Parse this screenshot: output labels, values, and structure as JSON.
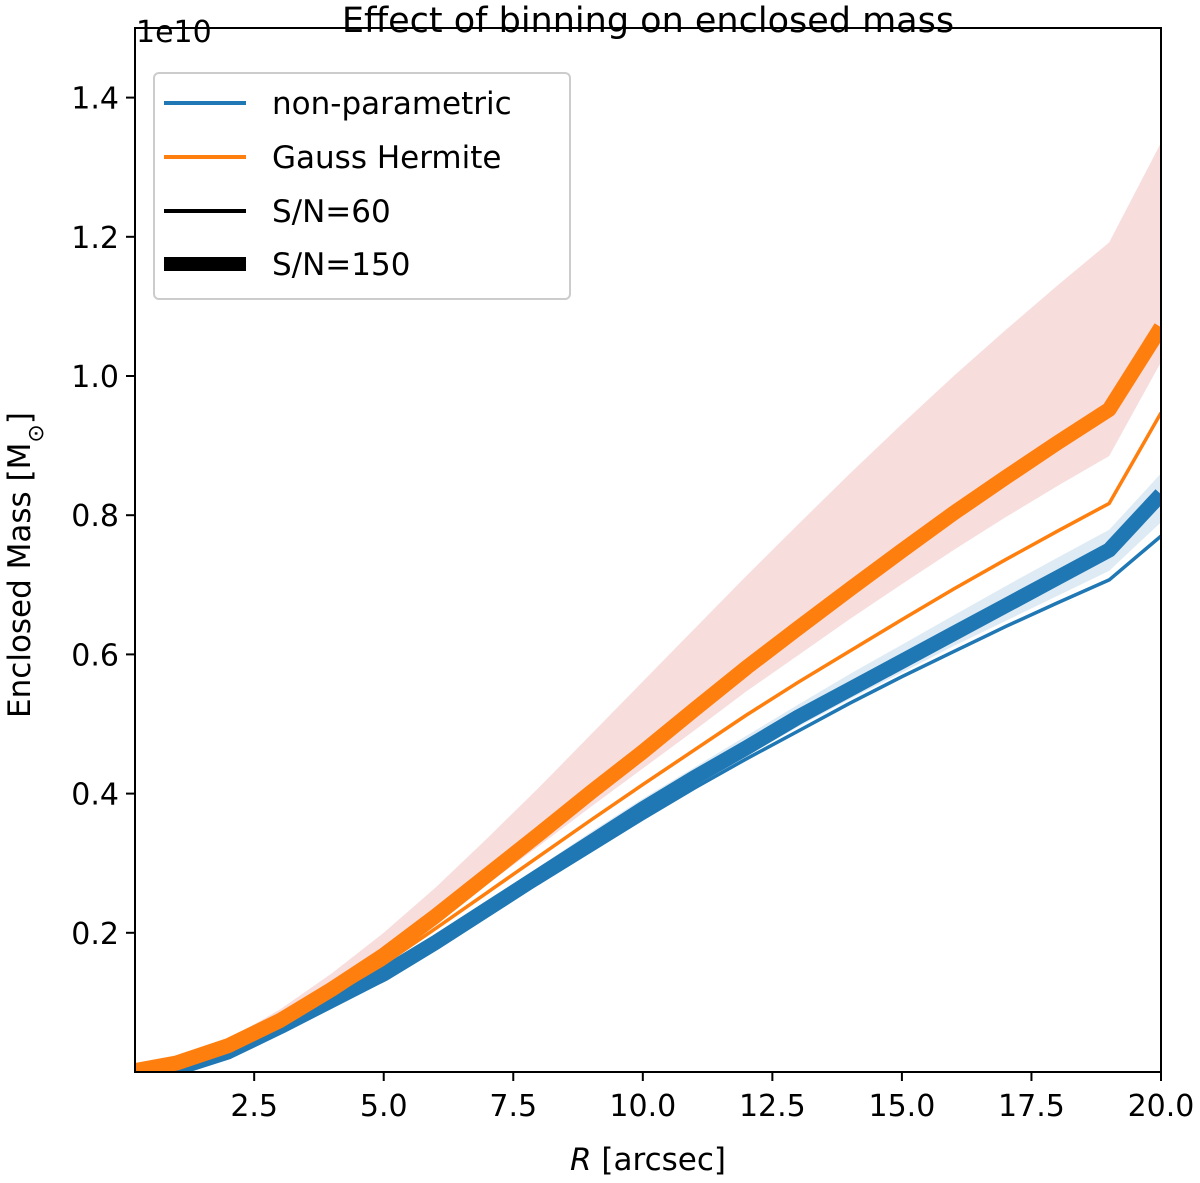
{
  "chart_data": {
    "type": "line",
    "title": "Effect of binning on enclosed mass",
    "xlabel_italic": "R",
    "xlabel_rest": " [arcsec]",
    "ylabel_main": "Enclosed Mass [M",
    "ylabel_sub": "⊙",
    "ylabel_close": "]",
    "y_offset_text": "1e10",
    "xlim": [
      0.2,
      20.0
    ],
    "ylim": [
      0.0,
      1.5
    ],
    "xticks": [
      2.5,
      5.0,
      7.5,
      10.0,
      12.5,
      15.0,
      17.5,
      20.0
    ],
    "xtick_labels": [
      "2.5",
      "5.0",
      "7.5",
      "10.0",
      "12.5",
      "15.0",
      "17.5",
      "20.0"
    ],
    "yticks": [
      0.2,
      0.4,
      0.6,
      0.8,
      1.0,
      1.2,
      1.4
    ],
    "ytick_labels": [
      "0.2",
      "0.4",
      "0.6",
      "0.8",
      "1.0",
      "1.2",
      "1.4"
    ],
    "grid": false,
    "legend_position": "upper-left",
    "legend": [
      {
        "label": "non-parametric",
        "color": "#1f77b4",
        "style": "thin"
      },
      {
        "label": "Gauss Hermite",
        "color": "#ff7f0e",
        "style": "thin"
      },
      {
        "label": "S/N=60",
        "color": "#000000",
        "style": "thin"
      },
      {
        "label": "S/N=150",
        "color": "#000000",
        "style": "thick"
      }
    ],
    "x": [
      0.2,
      1.0,
      2.0,
      3.0,
      4.0,
      5.0,
      6.0,
      7.0,
      8.0,
      9.0,
      10.0,
      11.0,
      12.0,
      13.0,
      14.0,
      15.0,
      16.0,
      17.0,
      18.0,
      19.0,
      20.0
    ],
    "series": [
      {
        "name": "non-parametric",
        "sn": "60",
        "color": "#1f77b4",
        "values": [
          0.0,
          0.005,
          0.028,
          0.063,
          0.1,
          0.138,
          0.182,
          0.228,
          0.272,
          0.318,
          0.364,
          0.408,
          0.45,
          0.49,
          0.53,
          0.568,
          0.604,
          0.64,
          0.674,
          0.707,
          0.77
        ]
      },
      {
        "name": "non-parametric",
        "sn": "150",
        "color": "#1f77b4",
        "values": [
          0.0,
          0.005,
          0.029,
          0.065,
          0.103,
          0.141,
          0.186,
          0.234,
          0.282,
          0.33,
          0.378,
          0.423,
          0.466,
          0.51,
          0.55,
          0.59,
          0.63,
          0.67,
          0.71,
          0.75,
          0.83
        ]
      },
      {
        "name": "Gauss Hermite",
        "sn": "60",
        "color": "#ff7f0e",
        "values": [
          0.002,
          0.013,
          0.037,
          0.07,
          0.111,
          0.155,
          0.206,
          0.258,
          0.31,
          0.362,
          0.413,
          0.463,
          0.513,
          0.56,
          0.605,
          0.65,
          0.694,
          0.736,
          0.777,
          0.817,
          0.947
        ]
      },
      {
        "name": "Gauss Hermite",
        "sn": "150",
        "color": "#ff7f0e",
        "values": [
          0.002,
          0.013,
          0.038,
          0.074,
          0.119,
          0.168,
          0.224,
          0.283,
          0.342,
          0.402,
          0.46,
          0.521,
          0.581,
          0.638,
          0.694,
          0.749,
          0.803,
          0.854,
          0.904,
          0.952,
          1.07
        ]
      }
    ],
    "bands": [
      {
        "color": "#1f77b4",
        "opacity": 0.15,
        "lower": [
          0.0,
          0.005,
          0.029,
          0.063,
          0.101,
          0.138,
          0.183,
          0.229,
          0.276,
          0.323,
          0.369,
          0.412,
          0.454,
          0.496,
          0.536,
          0.574,
          0.612,
          0.648,
          0.684,
          0.72,
          0.79
        ],
        "upper": [
          0.0,
          0.006,
          0.031,
          0.068,
          0.107,
          0.148,
          0.195,
          0.245,
          0.295,
          0.345,
          0.393,
          0.438,
          0.483,
          0.528,
          0.572,
          0.614,
          0.656,
          0.698,
          0.739,
          0.779,
          0.86
        ]
      },
      {
        "color": "#e27878",
        "opacity": 0.25,
        "lower": [
          0.002,
          0.012,
          0.035,
          0.07,
          0.115,
          0.161,
          0.214,
          0.27,
          0.325,
          0.381,
          0.436,
          0.491,
          0.547,
          0.599,
          0.651,
          0.701,
          0.75,
          0.797,
          0.842,
          0.885,
          1.02
        ],
        "upper": [
          0.002,
          0.015,
          0.047,
          0.09,
          0.142,
          0.2,
          0.265,
          0.336,
          0.409,
          0.485,
          0.561,
          0.637,
          0.713,
          0.787,
          0.86,
          0.931,
          1.0,
          1.066,
          1.13,
          1.192,
          1.335
        ]
      }
    ]
  }
}
